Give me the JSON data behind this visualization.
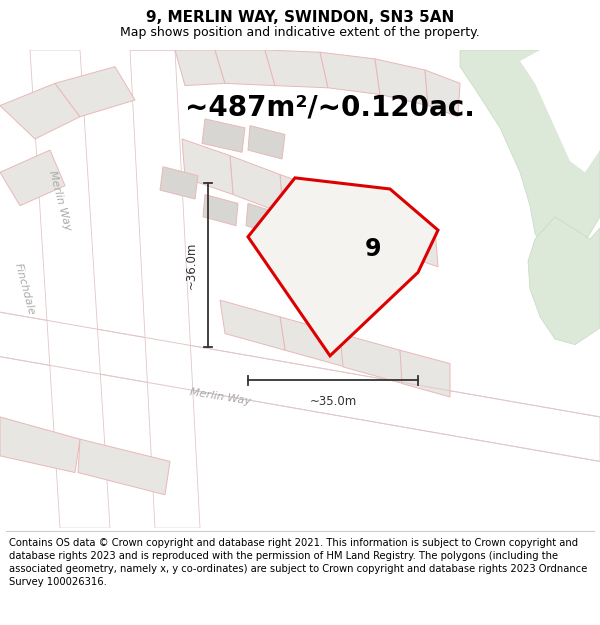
{
  "title": "9, MERLIN WAY, SWINDON, SN3 5AN",
  "subtitle": "Map shows position and indicative extent of the property.",
  "area_text": "~487m²/~0.120ac.",
  "number_label": "9",
  "dim_width": "~35.0m",
  "dim_height": "~36.0m",
  "footer": "Contains OS data © Crown copyright and database right 2021. This information is subject to Crown copyright and database rights 2023 and is reproduced with the permission of HM Land Registry. The polygons (including the associated geometry, namely x, y co-ordinates) are subject to Crown copyright and database rights 2023 Ordnance Survey 100026316.",
  "map_bg": "#f0eeeb",
  "road_fill": "#ffffff",
  "road_outline_color": "#e0c8c8",
  "parcel_fill": "#e8e6e3",
  "parcel_outline": "#e8b8b8",
  "building_fill": "#d8d6d3",
  "green_fill": "#dce8d8",
  "green_outline": "#c8d8c4",
  "plot_fill": "#f5f3f0",
  "plot_red": "#dd0000",
  "dim_color": "#333333",
  "street_color": "#aaaaaa",
  "title_fontsize": 11,
  "subtitle_fontsize": 9,
  "area_fontsize": 20,
  "label_fontsize": 17,
  "dim_fontsize": 8.5,
  "street_fontsize": 8,
  "footer_fontsize": 7.2
}
